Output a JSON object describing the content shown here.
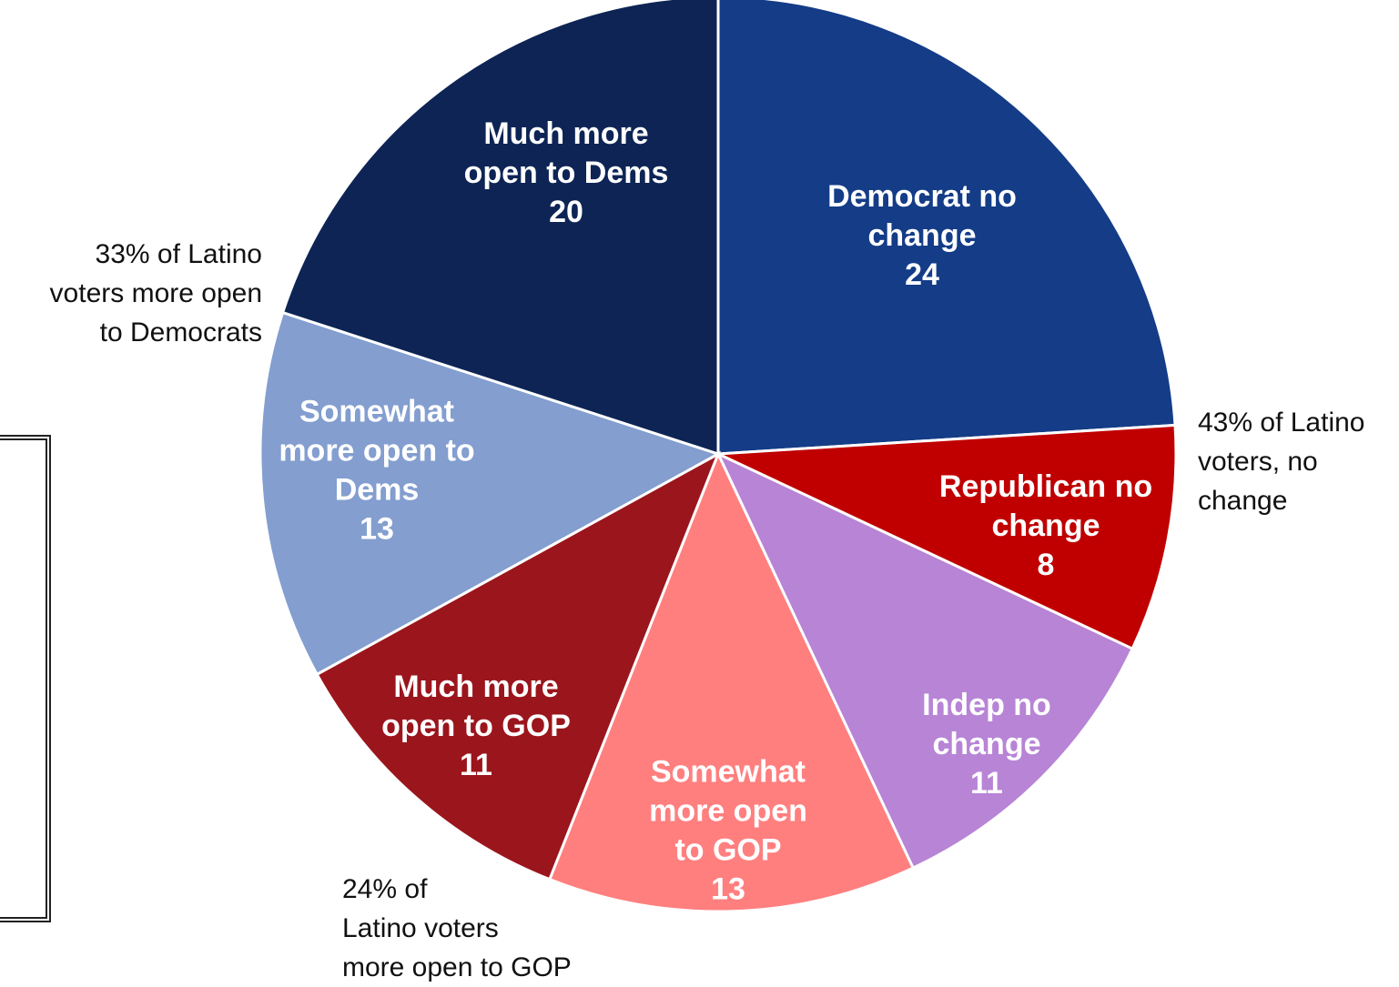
{
  "chart_data": {
    "type": "pie",
    "title": "",
    "start_angle_deg": 0,
    "direction": "clockwise",
    "slices": [
      {
        "label_lines": [
          "Democrat no",
          "change"
        ],
        "value": 24,
        "color": "#143c87"
      },
      {
        "label_lines": [
          "Republican no",
          "change"
        ],
        "value": 8,
        "color": "#c00000"
      },
      {
        "label_lines": [
          "Indep no",
          "change"
        ],
        "value": 11,
        "color": "#b784d6"
      },
      {
        "label_lines": [
          "Somewhat",
          "more open",
          "to GOP"
        ],
        "value": 13,
        "color": "#ff7f7f"
      },
      {
        "label_lines": [
          "Much more",
          "open to GOP"
        ],
        "value": 11,
        "color": "#9b151c"
      },
      {
        "label_lines": [
          "Somewhat",
          "more open to",
          "Dems"
        ],
        "value": 13,
        "color": "#839ecf"
      },
      {
        "label_lines": [
          "Much more",
          "open to Dems"
        ],
        "value": 20,
        "color": "#0d2455"
      }
    ],
    "annotations": {
      "dem": [
        "33% of Latino",
        "voters more open",
        "to Democrats"
      ],
      "no_change": [
        "43% of Latino",
        "voters, no",
        "change"
      ],
      "gop": [
        "24% of",
        "Latino voters",
        "more open to GOP"
      ]
    }
  }
}
